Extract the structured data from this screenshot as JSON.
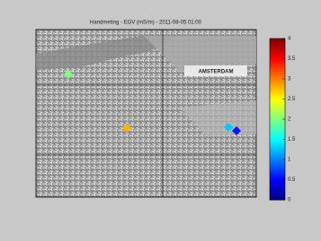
{
  "chart_data": {
    "type": "scatter",
    "title": "Handmeting - EGV (mS/m) - 2011-08-05 01:00",
    "annotation": "AMSTERDAM",
    "values": [
      2.0,
      2.8,
      1.3,
      0.6
    ],
    "clim": [
      0,
      4
    ],
    "cticks": [
      0,
      0.5,
      1,
      1.5,
      2,
      2.5,
      3,
      3.5,
      4
    ],
    "colormap": "jet",
    "grid": true
  }
}
